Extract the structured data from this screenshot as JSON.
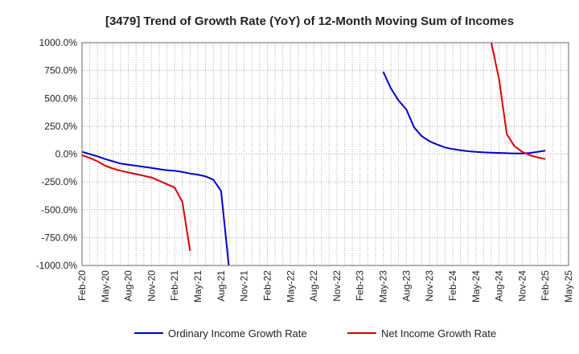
{
  "chart_data": {
    "type": "line",
    "title": "[3479]  Trend of Growth Rate (YoY) of 12-Month Moving Sum of Incomes",
    "xlabel": "",
    "ylabel": "",
    "ylim": [
      -1000,
      1000
    ],
    "y_ticks": [
      1000,
      750,
      500,
      250,
      0,
      -250,
      -500,
      -750,
      -1000
    ],
    "y_tick_labels": [
      "1000.0%",
      "750.0%",
      "500.0%",
      "250.0%",
      "0.0%",
      "-250.0%",
      "-500.0%",
      "-750.0%",
      "-1000.0%"
    ],
    "x_tick_labels": [
      "Feb-20",
      "May-20",
      "Aug-20",
      "Nov-20",
      "Feb-21",
      "May-21",
      "Aug-21",
      "Nov-21",
      "Feb-22",
      "May-22",
      "Aug-22",
      "Nov-22",
      "Feb-23",
      "May-23",
      "Aug-23",
      "Nov-23",
      "Feb-24",
      "May-24",
      "Aug-24",
      "Nov-24",
      "Feb-25",
      "May-25"
    ],
    "x_months": [
      "2020-02",
      "2020-03",
      "2020-04",
      "2020-05",
      "2020-06",
      "2020-07",
      "2020-08",
      "2020-09",
      "2020-10",
      "2020-11",
      "2020-12",
      "2021-01",
      "2021-02",
      "2021-03",
      "2021-04",
      "2021-05",
      "2021-06",
      "2021-07",
      "2021-08",
      "2021-09",
      "2021-10",
      "2021-11",
      "2021-12",
      "2022-01",
      "2022-02",
      "2022-03",
      "2022-04",
      "2022-05",
      "2022-06",
      "2022-07",
      "2022-08",
      "2022-09",
      "2022-10",
      "2022-11",
      "2022-12",
      "2023-01",
      "2023-02",
      "2023-03",
      "2023-04",
      "2023-05",
      "2023-06",
      "2023-07",
      "2023-08",
      "2023-09",
      "2023-10",
      "2023-11",
      "2023-12",
      "2024-01",
      "2024-02",
      "2024-03",
      "2024-04",
      "2024-05",
      "2024-06",
      "2024-07",
      "2024-08",
      "2024-09",
      "2024-10",
      "2024-11",
      "2024-12",
      "2025-01",
      "2025-02",
      "2025-03",
      "2025-04",
      "2025-05"
    ],
    "grid": true,
    "legend_position": "bottom",
    "series": [
      {
        "name": "Ordinary Income Growth Rate",
        "color": "#0000cc",
        "points": [
          [
            "2020-02",
            20
          ],
          [
            "2020-03",
            0
          ],
          [
            "2020-04",
            -20
          ],
          [
            "2020-05",
            -45
          ],
          [
            "2020-06",
            -65
          ],
          [
            "2020-07",
            -85
          ],
          [
            "2020-08",
            -95
          ],
          [
            "2020-09",
            -105
          ],
          [
            "2020-10",
            -115
          ],
          [
            "2020-11",
            -125
          ],
          [
            "2020-12",
            -135
          ],
          [
            "2021-01",
            -145
          ],
          [
            "2021-02",
            -150
          ],
          [
            "2021-03",
            -160
          ],
          [
            "2021-04",
            -175
          ],
          [
            "2021-05",
            -185
          ],
          [
            "2021-06",
            -200
          ],
          [
            "2021-07",
            -230
          ],
          [
            "2021-08",
            -330
          ],
          [
            "2021-09",
            -1000
          ],
          [
            "2023-05",
            740
          ],
          [
            "2023-06",
            590
          ],
          [
            "2023-07",
            480
          ],
          [
            "2023-08",
            400
          ],
          [
            "2023-09",
            240
          ],
          [
            "2023-10",
            160
          ],
          [
            "2023-11",
            115
          ],
          [
            "2023-12",
            85
          ],
          [
            "2024-01",
            60
          ],
          [
            "2024-02",
            45
          ],
          [
            "2024-03",
            35
          ],
          [
            "2024-04",
            25
          ],
          [
            "2024-05",
            20
          ],
          [
            "2024-06",
            15
          ],
          [
            "2024-07",
            12
          ],
          [
            "2024-08",
            10
          ],
          [
            "2024-09",
            8
          ],
          [
            "2024-10",
            5
          ],
          [
            "2024-11",
            5
          ],
          [
            "2024-12",
            10
          ],
          [
            "2025-01",
            20
          ],
          [
            "2025-02",
            30
          ]
        ]
      },
      {
        "name": "Net Income Growth Rate",
        "color": "#dd0000",
        "points": [
          [
            "2020-02",
            -10
          ],
          [
            "2020-03",
            -35
          ],
          [
            "2020-04",
            -65
          ],
          [
            "2020-05",
            -105
          ],
          [
            "2020-06",
            -130
          ],
          [
            "2020-07",
            -150
          ],
          [
            "2020-08",
            -165
          ],
          [
            "2020-09",
            -180
          ],
          [
            "2020-10",
            -195
          ],
          [
            "2020-11",
            -210
          ],
          [
            "2020-12",
            -240
          ],
          [
            "2021-01",
            -270
          ],
          [
            "2021-02",
            -300
          ],
          [
            "2021-03",
            -430
          ],
          [
            "2021-04",
            -870
          ],
          [
            "2024-07",
            1000
          ],
          [
            "2024-08",
            670
          ],
          [
            "2024-09",
            180
          ],
          [
            "2024-10",
            70
          ],
          [
            "2024-11",
            20
          ],
          [
            "2024-12",
            -10
          ],
          [
            "2025-01",
            -30
          ],
          [
            "2025-02",
            -45
          ]
        ]
      }
    ]
  }
}
